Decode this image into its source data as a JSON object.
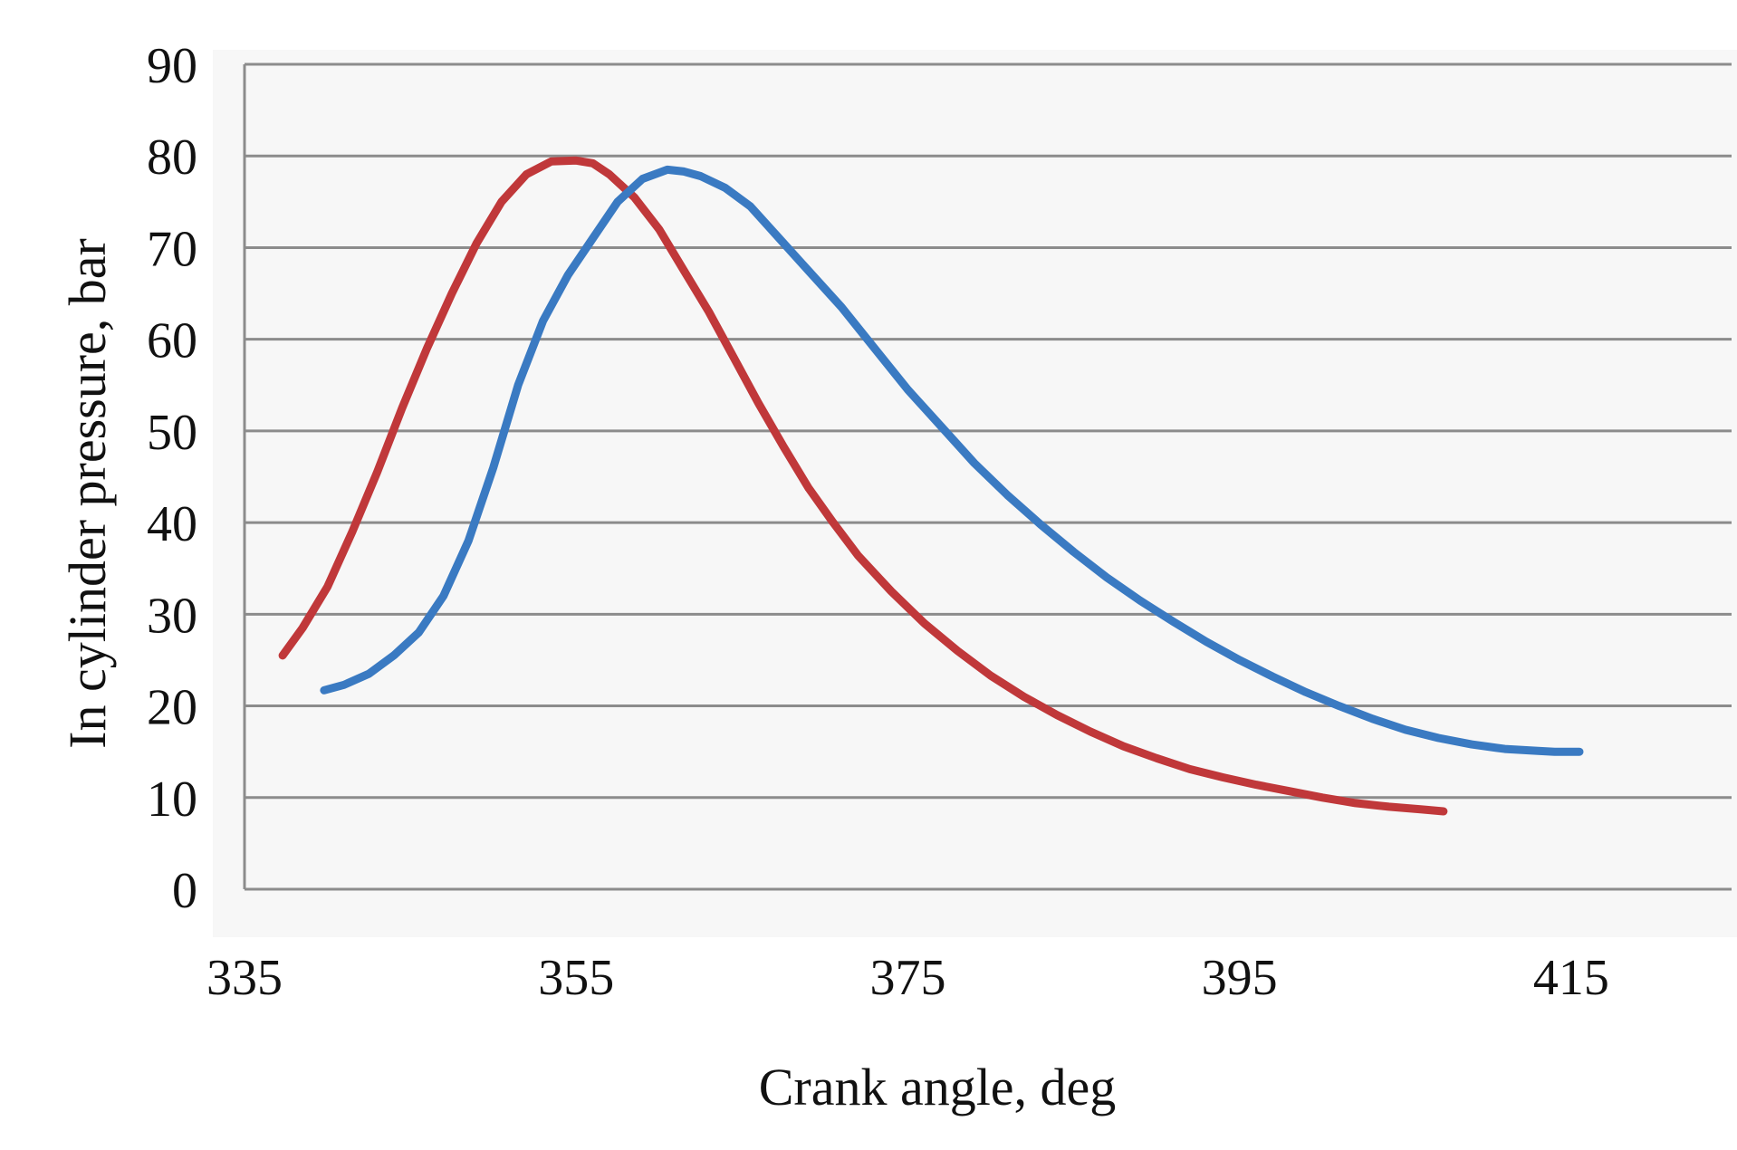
{
  "chart_data": {
    "type": "line",
    "title": "",
    "xlabel": "Crank angle, deg",
    "ylabel": "In cylinder pressure, bar",
    "xlim": [
      335,
      425
    ],
    "ylim": [
      0,
      90
    ],
    "x_ticks": [
      "335",
      "355",
      "375",
      "395",
      "415"
    ],
    "y_ticks": [
      "0",
      "10",
      "20",
      "30",
      "40",
      "50",
      "60",
      "70",
      "80",
      "90"
    ],
    "grid": "horizontal",
    "legend": "none",
    "colors": {
      "red": "#c0383a",
      "blue": "#3a7ac2",
      "grid": "#8c8c8c",
      "plot_bg": "#f7f7f7"
    },
    "series": [
      {
        "color": "#c0383a",
        "x": [
          337.3,
          338.5,
          340,
          341.5,
          343,
          344.5,
          346,
          347.5,
          349,
          350.5,
          352,
          353.5,
          355,
          356,
          357,
          358.5,
          360,
          361.5,
          363,
          364.5,
          366,
          367.5,
          369,
          370.5,
          372,
          374,
          376,
          378,
          380,
          382,
          384,
          386,
          388,
          390,
          392,
          394,
          396,
          398,
          400,
          402,
          404,
          406,
          407.3
        ],
        "y": [
          25.5,
          28.5,
          33.0,
          39.0,
          45.5,
          52.5,
          59.0,
          65.0,
          70.5,
          75.0,
          78.0,
          79.4,
          79.5,
          79.2,
          78.0,
          75.5,
          72.0,
          67.5,
          63.0,
          58.0,
          53.0,
          48.3,
          43.8,
          40.0,
          36.4,
          32.5,
          29.0,
          26.0,
          23.3,
          21.0,
          19.0,
          17.2,
          15.6,
          14.3,
          13.1,
          12.2,
          11.4,
          10.7,
          10.0,
          9.4,
          9.0,
          8.7,
          8.5
        ]
      },
      {
        "color": "#3a7ac2",
        "x": [
          339.8,
          341,
          342.5,
          344,
          345.5,
          347,
          348.5,
          350,
          351.5,
          353,
          354.5,
          356,
          357.5,
          359,
          360.5,
          361.5,
          362.5,
          364,
          365.5,
          367,
          369,
          371,
          373,
          375,
          377,
          379,
          381,
          383,
          385,
          387,
          389,
          391,
          393,
          395,
          397,
          399,
          401,
          403,
          405,
          407,
          409,
          411,
          413,
          414,
          415.5
        ],
        "y": [
          21.7,
          22.3,
          23.5,
          25.5,
          28.0,
          32.0,
          38.0,
          46.0,
          55.0,
          62.0,
          67.0,
          71.0,
          75.0,
          77.5,
          78.5,
          78.3,
          77.8,
          76.5,
          74.5,
          71.5,
          67.5,
          63.5,
          59.0,
          54.5,
          50.5,
          46.5,
          43.0,
          39.8,
          36.8,
          34.0,
          31.5,
          29.2,
          27.0,
          25.0,
          23.2,
          21.5,
          20.0,
          18.6,
          17.4,
          16.5,
          15.8,
          15.3,
          15.1,
          15.0,
          15.0
        ]
      }
    ]
  }
}
